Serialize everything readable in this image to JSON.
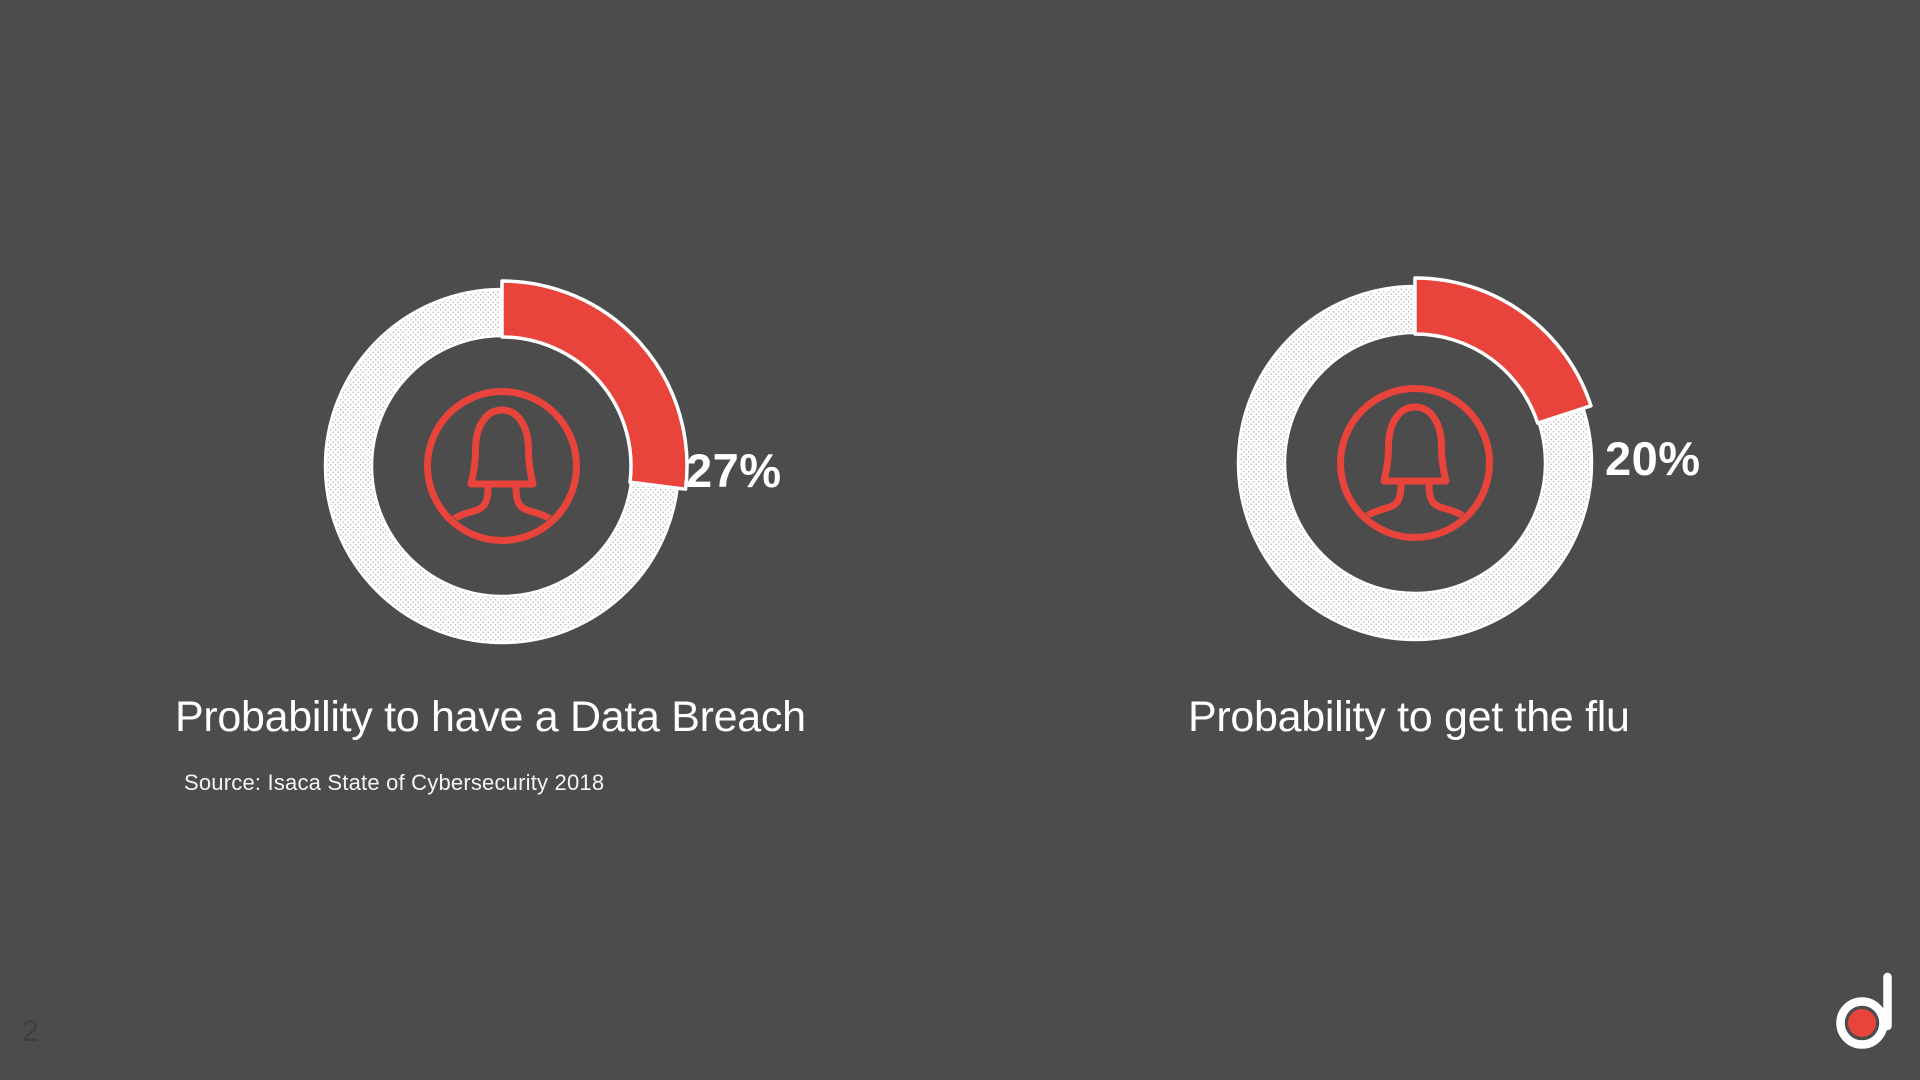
{
  "theme": {
    "background": "#4c4c4c",
    "accent": "#e9443b",
    "track_white": "#ffffff",
    "text": "#ffffff",
    "page_number_color": "#3e3e3e"
  },
  "page_number": "2",
  "charts": [
    {
      "percent_label": "27%",
      "caption": "Probability to have a Data Breach",
      "source": "Source: Isaca State of Cybersecurity 2018"
    },
    {
      "percent_label": "20%",
      "caption": "Probability to get the flu"
    }
  ],
  "chart_data": [
    {
      "type": "pie",
      "subtype": "donut",
      "title": "Probability to have a Data Breach",
      "labels": [
        "Probability to have a Data Breach",
        "Remainder"
      ],
      "values": [
        27,
        73
      ],
      "unit": "%",
      "annotation": "27%",
      "start_angle_deg": 0,
      "direction": "clockwise",
      "slice_color": "#e9443b",
      "track_color": "#ffffff",
      "center_icon": "person-icon",
      "source": "Source: Isaca State of Cybersecurity 2018",
      "legend": "none"
    },
    {
      "type": "pie",
      "subtype": "donut",
      "title": "Probability to get the flu",
      "labels": [
        "Probability to get the flu",
        "Remainder"
      ],
      "values": [
        20,
        80
      ],
      "unit": "%",
      "annotation": "20%",
      "start_angle_deg": 0,
      "direction": "clockwise",
      "slice_color": "#e9443b",
      "track_color": "#ffffff",
      "center_icon": "person-icon",
      "legend": "none"
    }
  ],
  "logo": {
    "name": "d-logo"
  }
}
